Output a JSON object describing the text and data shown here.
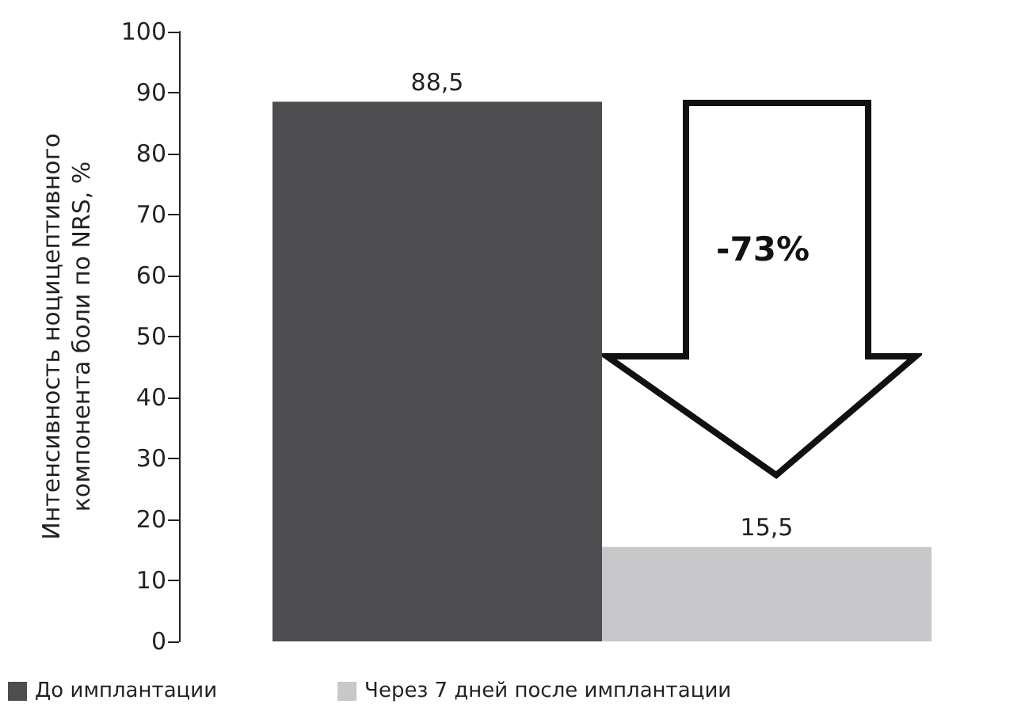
{
  "chart_data": {
    "type": "bar",
    "ylabel": "Интенсивность ноцицептивного\nкомпонента боли по NRS, %",
    "categories": [
      null
    ],
    "series": [
      {
        "name": "До имплантации",
        "color": "#4d4d4f",
        "values": [
          88.5
        ],
        "value_labels": [
          "88,5"
        ]
      },
      {
        "name": "Через 7 дней после имплантации",
        "color": "#c8c8ca",
        "values": [
          15.5
        ],
        "value_labels": [
          "15,5"
        ]
      }
    ],
    "ylim": [
      0,
      100
    ],
    "yticks": [
      0,
      10,
      20,
      30,
      40,
      50,
      60,
      70,
      80,
      90,
      100
    ],
    "grid": false,
    "legend": "bottom left",
    "annotations": [
      "-73%"
    ]
  }
}
